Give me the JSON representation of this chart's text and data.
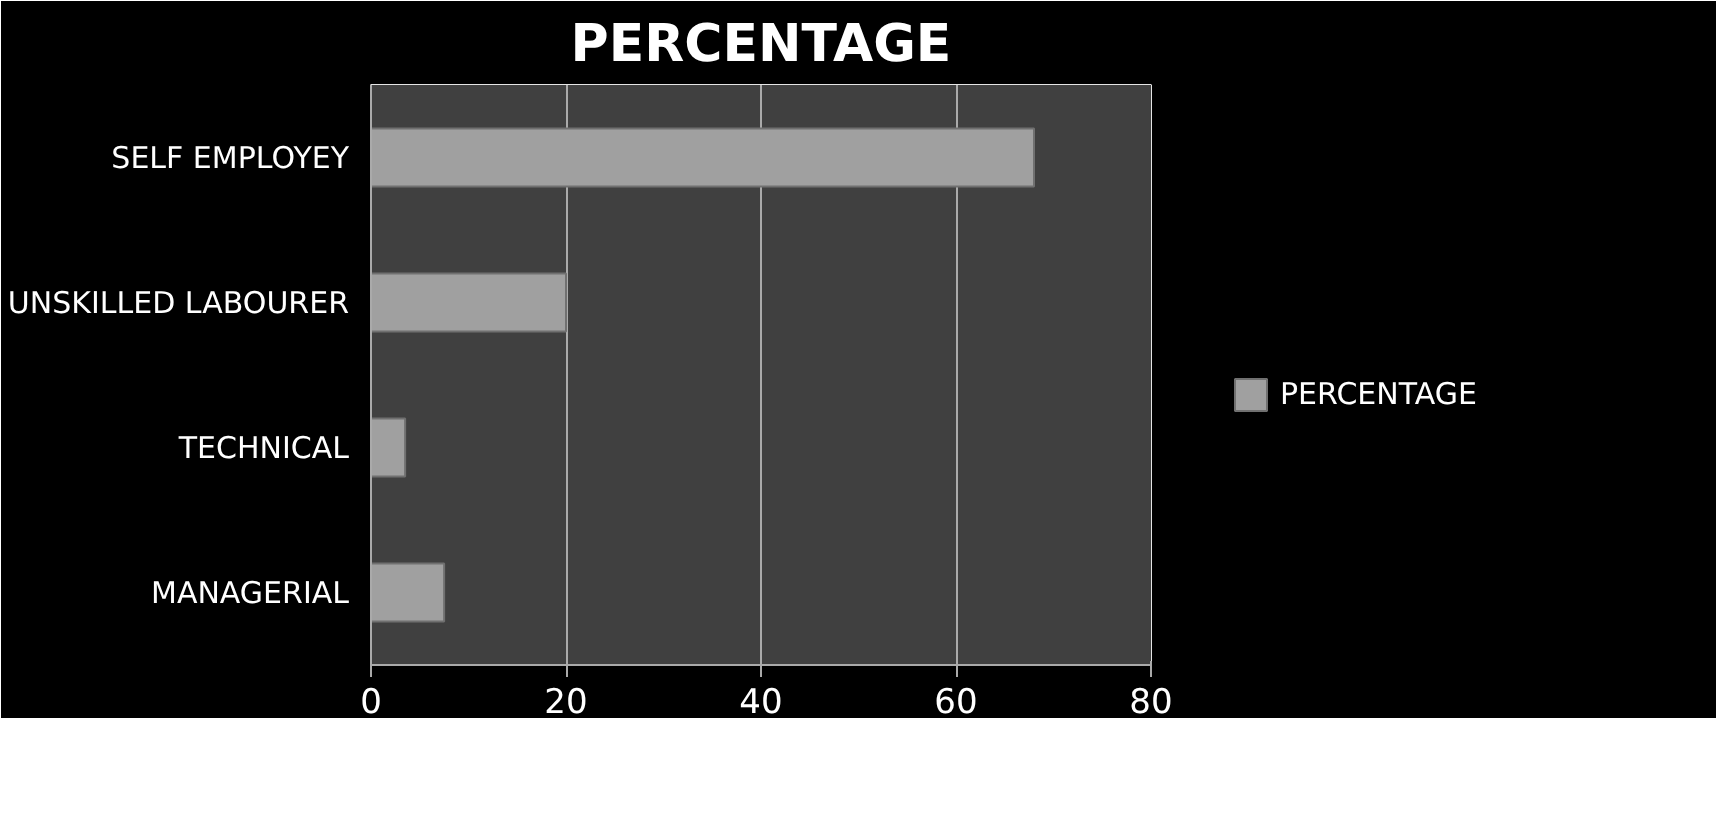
{
  "chart_data": {
    "type": "bar",
    "orientation": "horizontal",
    "title": "PERCENTAGE",
    "categories": [
      "SELF EMPLOYEY",
      "UNSKILLED LABOURER",
      "TECHNICAL",
      "MANAGERIAL"
    ],
    "series": [
      {
        "name": "PERCENTAGE",
        "color": "#a0a0a0",
        "values": [
          68,
          20,
          3.5,
          7.5
        ]
      }
    ],
    "xlim": [
      0,
      80
    ],
    "xticks": [
      0,
      20,
      40,
      60,
      80
    ],
    "grid": "x",
    "legend": "right"
  }
}
